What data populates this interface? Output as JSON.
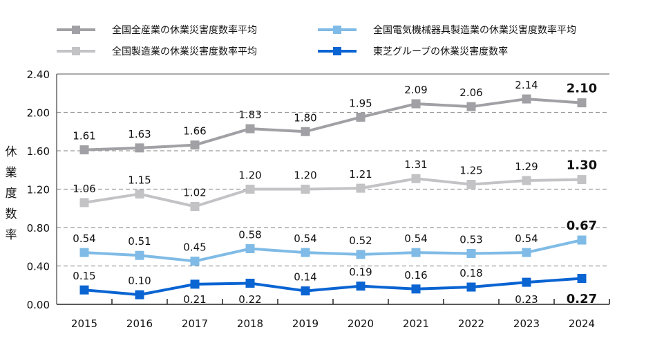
{
  "chart_data": {
    "type": "line",
    "title": "",
    "xlabel": "",
    "ylabel": "休業度数率",
    "ylim": [
      0,
      2.4
    ],
    "yticks": [
      "0.00",
      "0.40",
      "0.80",
      "1.20",
      "1.60",
      "2.00",
      "2.40"
    ],
    "grid": "horizontal dashed",
    "legend_position": "top",
    "categories": [
      "2015",
      "2016",
      "2017",
      "2018",
      "2019",
      "2020",
      "2021",
      "2022",
      "2023",
      "2024"
    ],
    "series": [
      {
        "name": "全国全産業の休業災害度数率平均",
        "color": "#a0a0a5",
        "values": [
          1.61,
          1.63,
          1.66,
          1.83,
          1.8,
          1.95,
          2.09,
          2.06,
          2.14,
          2.1
        ],
        "labels": [
          "1.61",
          "1.63",
          "1.66",
          "1.83",
          "1.80",
          "1.95",
          "2.09",
          "2.06",
          "2.14",
          "2.10"
        ]
      },
      {
        "name": "全国製造業の休業災害度数率平均",
        "color": "#c3c3c6",
        "values": [
          1.06,
          1.15,
          1.02,
          1.2,
          1.2,
          1.21,
          1.31,
          1.25,
          1.29,
          1.3
        ],
        "labels": [
          "1.06",
          "1.15",
          "1.02",
          "1.20",
          "1.20",
          "1.21",
          "1.31",
          "1.25",
          "1.29",
          "1.30"
        ]
      },
      {
        "name": "全国電気機械器具製造業の休業災害度数率平均",
        "color": "#7fbbe6",
        "values": [
          0.54,
          0.51,
          0.45,
          0.58,
          0.54,
          0.52,
          0.54,
          0.53,
          0.54,
          0.67
        ],
        "labels": [
          "0.54",
          "0.51",
          "0.45",
          "0.58",
          "0.54",
          "0.52",
          "0.54",
          "0.53",
          "0.54",
          "0.67"
        ]
      },
      {
        "name": "東芝グループの休業災害度数率",
        "color": "#0a64d2",
        "values": [
          0.15,
          0.1,
          0.21,
          0.22,
          0.14,
          0.19,
          0.16,
          0.18,
          0.23,
          0.27
        ],
        "labels": [
          "0.15",
          "0.10",
          "0.21",
          "0.22",
          "0.14",
          "0.19",
          "0.16",
          "0.18",
          "0.23",
          "0.27"
        ]
      }
    ]
  }
}
